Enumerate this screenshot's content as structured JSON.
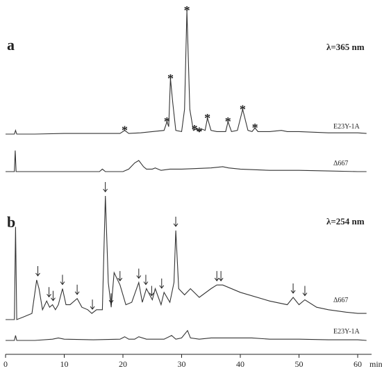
{
  "chart_data": [
    {
      "type": "line",
      "title": "a",
      "annotation": "λ=365 nm",
      "xlim": [
        0,
        60
      ],
      "ylim": [
        0,
        100
      ],
      "series": [
        {
          "name": "E23Y-1A",
          "color": "#333333",
          "x": [
            0,
            1.5,
            1.7,
            1.9,
            5,
            10,
            15,
            19.5,
            20.3,
            21,
            23,
            24,
            27,
            27.5,
            27.8,
            28.1,
            28.5,
            29,
            30,
            30.5,
            30.9,
            31.4,
            32,
            32.5,
            33,
            33.5,
            34,
            34.4,
            35,
            36,
            37.5,
            37.9,
            38.5,
            39.5,
            40.4,
            41.3,
            42,
            42.5,
            43,
            45,
            47,
            48,
            50,
            55,
            60,
            61.5
          ],
          "values": [
            0,
            0,
            3,
            0,
            0,
            0.5,
            0.5,
            0.5,
            3,
            0.5,
            1,
            1.5,
            3,
            10,
            6,
            45,
            25,
            3,
            2,
            20,
            100,
            20,
            3,
            4,
            2,
            4,
            3,
            13,
            3,
            2,
            2,
            10,
            2,
            3,
            20,
            3,
            2,
            5,
            2,
            2,
            3,
            2,
            2,
            1,
            1,
            0.5
          ]
        },
        {
          "name": "Δ667",
          "color": "#333333",
          "x": [
            0,
            1.5,
            1.65,
            1.8,
            2,
            5,
            10,
            16,
            16.5,
            17,
            18,
            20,
            21,
            22,
            22.7,
            23.5,
            24,
            25,
            25.5,
            26.5,
            28,
            30,
            35,
            37,
            38,
            40,
            45,
            50,
            55,
            60,
            61.5
          ],
          "values": [
            0,
            0,
            17,
            0,
            0,
            0,
            0,
            0,
            2,
            0,
            0,
            0,
            2,
            7,
            9,
            4,
            2,
            2,
            3,
            1,
            2,
            2,
            3,
            4,
            3,
            2,
            1,
            1,
            0.5,
            0,
            0
          ]
        }
      ],
      "markers": [
        {
          "text": "*",
          "x": 20.3
        },
        {
          "text": "*",
          "x": 27.5
        },
        {
          "text": "*",
          "x": 28.1
        },
        {
          "text": "*",
          "x": 30.9
        },
        {
          "text": "*",
          "x": 32.2
        },
        {
          "text": "*",
          "x": 33.0
        },
        {
          "text": "*",
          "x": 34.4
        },
        {
          "text": "*",
          "x": 37.9
        },
        {
          "text": "*",
          "x": 40.4
        },
        {
          "text": "*",
          "x": 42.5
        }
      ]
    },
    {
      "type": "line",
      "title": "b",
      "annotation": "λ=254 nm",
      "xlim": [
        0,
        60
      ],
      "ylim": [
        0,
        100
      ],
      "xticks": [
        0,
        10,
        20,
        30,
        40,
        50,
        60
      ],
      "xlabel": "min",
      "series": [
        {
          "name": "Δ667",
          "color": "#333333",
          "x": [
            0,
            1.5,
            1.7,
            1.9,
            3,
            4.5,
            5.3,
            5.7,
            6.3,
            7,
            7.5,
            8,
            8.5,
            9,
            9.7,
            10.3,
            11,
            12.2,
            13,
            14,
            14.7,
            15.5,
            16.5,
            17,
            17.5,
            18,
            18.5,
            19.5,
            20.5,
            21.5,
            22.7,
            23.3,
            24,
            25,
            25.5,
            26.5,
            27,
            28,
            28.7,
            29,
            29.5,
            30.5,
            31.5,
            33,
            35,
            36,
            37,
            40,
            45,
            48,
            49,
            50,
            51,
            53,
            55,
            58,
            60,
            61.5
          ],
          "values": [
            0,
            0,
            75,
            0,
            2,
            5,
            32,
            25,
            8,
            15,
            10,
            12,
            8,
            12,
            25,
            12,
            12,
            17,
            10,
            8,
            5,
            8,
            8,
            100,
            30,
            10,
            38,
            28,
            12,
            14,
            30,
            14,
            25,
            16,
            25,
            12,
            22,
            14,
            30,
            72,
            25,
            20,
            25,
            18,
            25,
            28,
            28,
            22,
            15,
            12,
            18,
            12,
            16,
            10,
            8,
            6,
            5,
            5
          ]
        },
        {
          "name": "E23Y-1A",
          "color": "#333333",
          "x": [
            0,
            1.5,
            1.7,
            1.9,
            5,
            8,
            9,
            10,
            15,
            19.5,
            20.3,
            21,
            22,
            22.7,
            24,
            27,
            28.3,
            29,
            30,
            31,
            31.5,
            33,
            35,
            38,
            40,
            42,
            45,
            50,
            55,
            60,
            61.5
          ],
          "values": [
            0,
            0,
            4,
            0,
            0,
            1,
            2,
            1,
            0.5,
            1,
            3,
            1,
            1,
            3,
            1,
            1,
            4,
            1,
            2,
            8,
            2,
            1,
            2,
            2,
            2,
            2,
            1,
            1,
            0.5,
            0.5,
            0
          ]
        }
      ],
      "arrows": [
        5.5,
        7.4,
        8.1,
        9.7,
        12.2,
        14.8,
        17,
        18,
        19.5,
        22.7,
        23.9,
        24.9,
        26.6,
        29,
        36,
        36.7,
        49,
        51
      ]
    }
  ]
}
